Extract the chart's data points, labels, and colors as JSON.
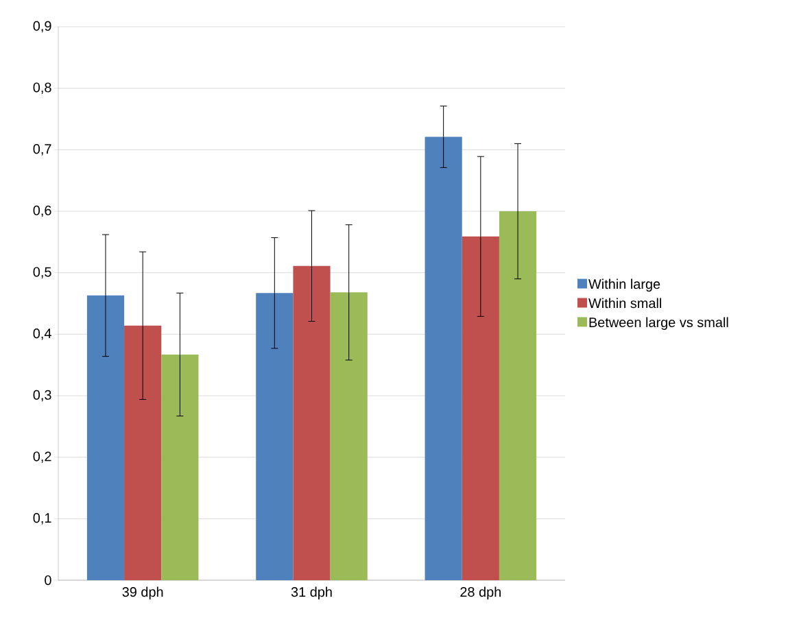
{
  "chart_data": {
    "type": "bar",
    "categories": [
      "39 dph",
      "31 dph",
      "28 dph"
    ],
    "series": [
      {
        "name": "Within large",
        "color": "#4f81bd",
        "values": [
          0.463,
          0.467,
          0.721
        ],
        "errors": [
          0.099,
          0.09,
          0.05
        ]
      },
      {
        "name": "Within small",
        "color": "#c0504d",
        "values": [
          0.414,
          0.511,
          0.559
        ],
        "errors": [
          0.12,
          0.09,
          0.13
        ]
      },
      {
        "name": "Between large vs small",
        "color": "#9bbb59",
        "values": [
          0.367,
          0.468,
          0.6
        ],
        "errors": [
          0.1,
          0.11,
          0.11
        ]
      }
    ],
    "ylim": [
      0,
      0.9
    ],
    "yticks": [
      0,
      {
        "value": 0.1,
        "label": "0,1"
      },
      {
        "value": 0.2,
        "label": "0,2"
      },
      {
        "value": 0.3,
        "label": "0,3"
      },
      {
        "value": 0.4,
        "label": "0,4"
      },
      {
        "value": 0.5,
        "label": "0,5"
      },
      {
        "value": 0.6,
        "label": "0,6"
      },
      {
        "value": 0.7,
        "label": "0,7"
      },
      {
        "value": 0.8,
        "label": "0,8"
      },
      {
        "value": 0.9,
        "label": "0,9"
      }
    ],
    "grid": "y",
    "legend": "right"
  }
}
